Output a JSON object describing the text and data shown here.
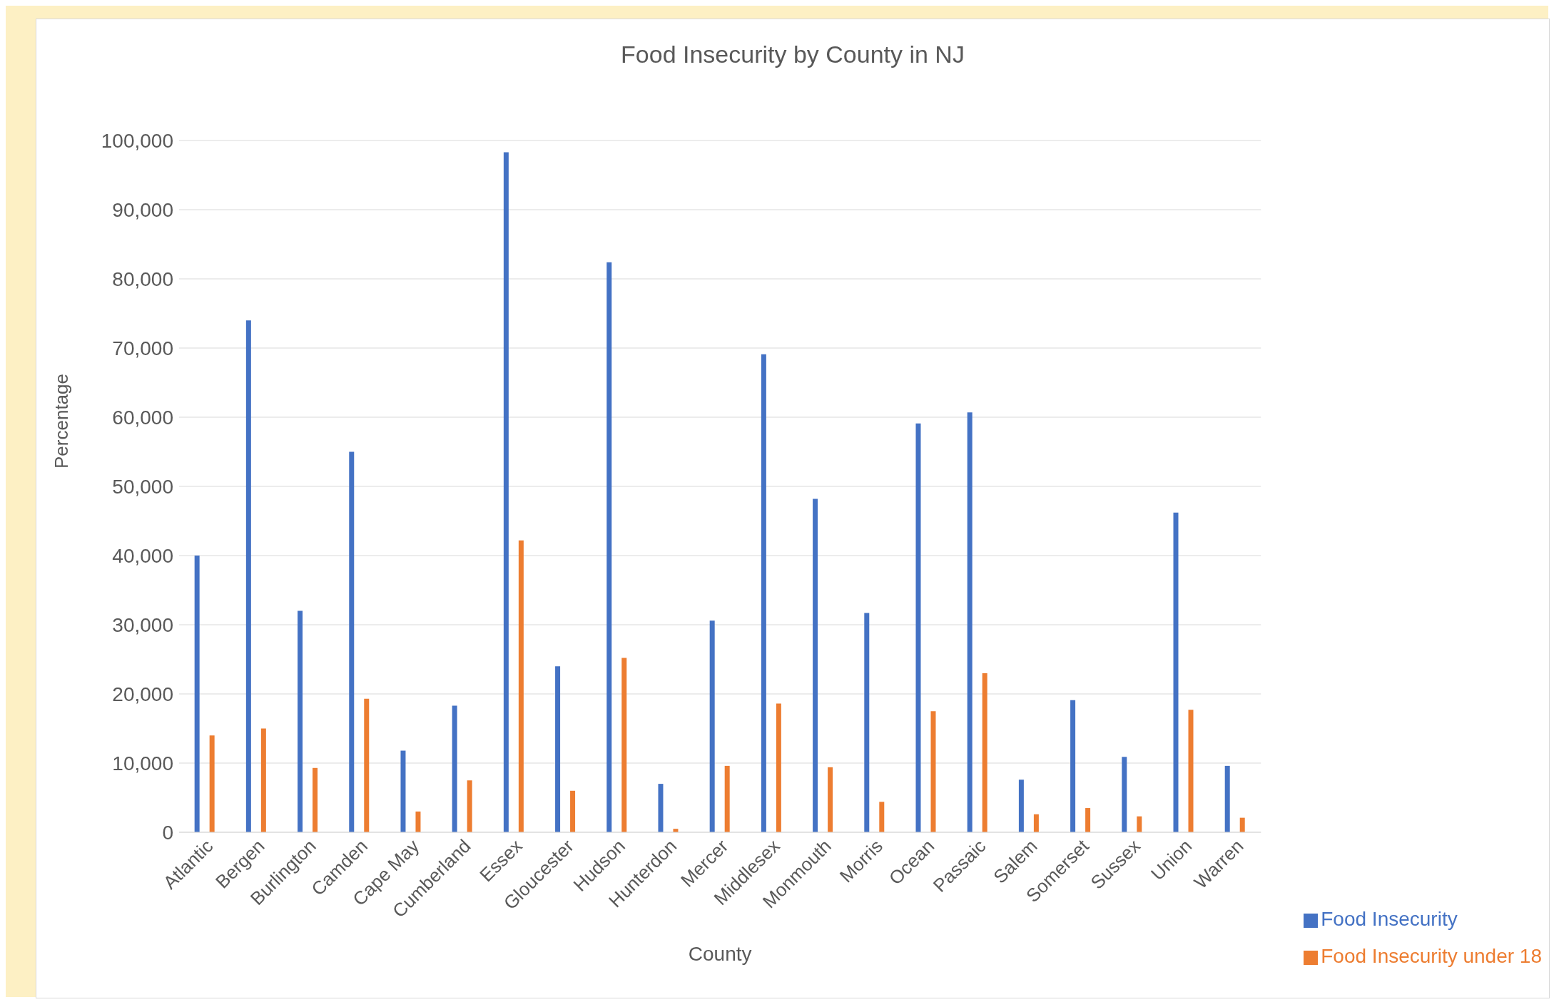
{
  "chart_data": {
    "type": "bar",
    "title": "Food Insecurity by County in NJ",
    "xlabel": "County",
    "ylabel": "Percentage",
    "categories": [
      "Atlantic",
      "Bergen",
      "Burlington",
      "Camden",
      "Cape May",
      "Cumberland",
      "Essex",
      "Gloucester",
      "Hudson",
      "Hunterdon",
      "Mercer",
      "Middlesex",
      "Monmouth",
      "Morris",
      "Ocean",
      "Passaic",
      "Salem",
      "Somerset",
      "Sussex",
      "Union",
      "Warren"
    ],
    "series": [
      {
        "name": "Food Insecurity",
        "color": "#4472c4",
        "values": [
          40000,
          74000,
          32000,
          55000,
          11800,
          18300,
          98300,
          24000,
          82400,
          7000,
          30600,
          69100,
          48200,
          31700,
          59100,
          60700,
          7600,
          19100,
          10900,
          46200,
          9600
        ]
      },
      {
        "name": "Food Insecurity under 18",
        "color": "#ed7d31",
        "values": [
          14000,
          15000,
          9300,
          19300,
          3000,
          7500,
          42200,
          6000,
          25200,
          500,
          9600,
          18600,
          9400,
          4400,
          17500,
          23000,
          2600,
          3500,
          2300,
          17700,
          2100
        ]
      }
    ],
    "ylim": [
      0,
      100000
    ],
    "yticks": [
      {
        "value": 0,
        "label": "0"
      },
      {
        "value": 10000,
        "label": "10,000"
      },
      {
        "value": 20000,
        "label": "20,000"
      },
      {
        "value": 30000,
        "label": "30,000"
      },
      {
        "value": 40000,
        "label": "40,000"
      },
      {
        "value": 50000,
        "label": "50,000"
      },
      {
        "value": 60000,
        "label": "60,000"
      },
      {
        "value": 70000,
        "label": "70,000"
      },
      {
        "value": 80000,
        "label": "80,000"
      },
      {
        "value": 90000,
        "label": "90,000"
      },
      {
        "value": 100000,
        "label": "100,000"
      }
    ],
    "grid": "y",
    "legend": "bottom right"
  }
}
